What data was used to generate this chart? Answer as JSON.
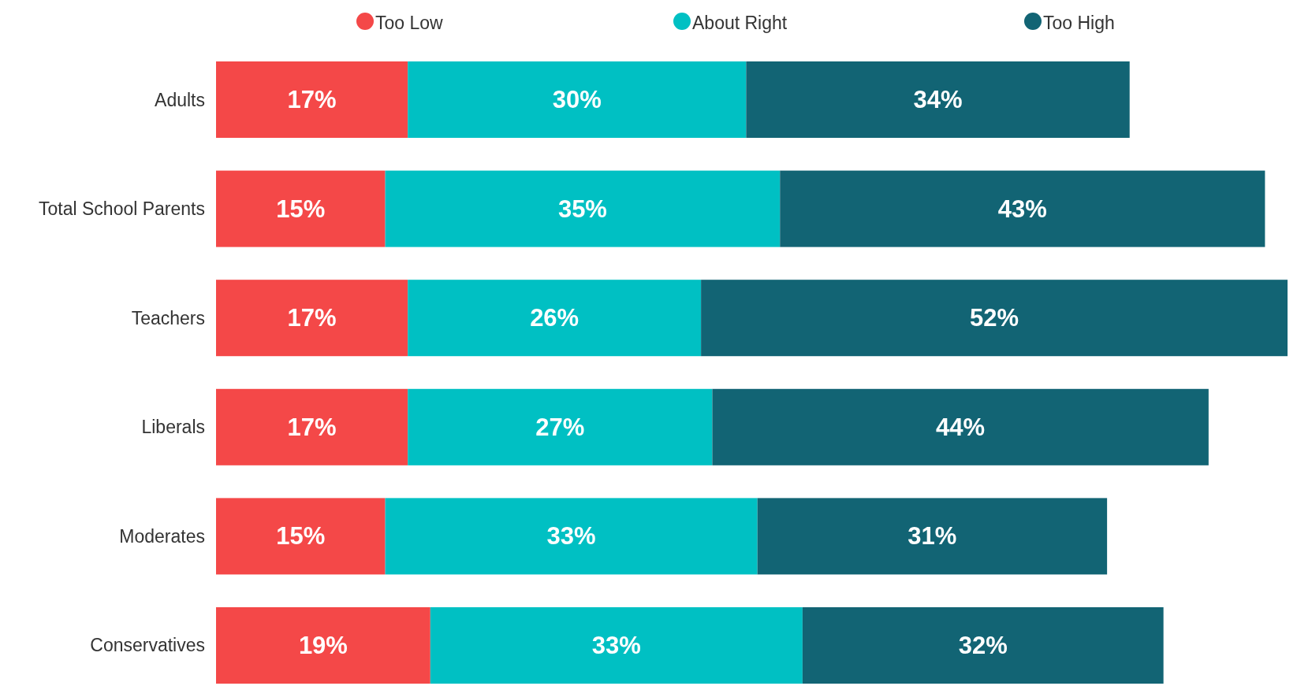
{
  "chart_data": {
    "type": "bar",
    "orientation": "horizontal",
    "stacked": true,
    "legend": "top",
    "categories": [
      "Adults",
      "Total School Parents",
      "Teachers",
      "Liberals",
      "Moderates",
      "Conservatives"
    ],
    "series": [
      {
        "name": "Too Low",
        "color": "#f44848",
        "values": [
          17,
          15,
          17,
          17,
          15,
          19
        ],
        "value_labels": [
          "17%",
          "15%",
          "17%",
          "17%",
          "15%",
          "19%"
        ]
      },
      {
        "name": "About Right",
        "color": "#00c0c3",
        "values": [
          30,
          35,
          26,
          27,
          33,
          33
        ],
        "value_labels": [
          "30%",
          "35%",
          "26%",
          "27%",
          "33%",
          "33%"
        ]
      },
      {
        "name": "Too High",
        "color": "#126474",
        "values": [
          34,
          43,
          52,
          44,
          31,
          32
        ],
        "value_labels": [
          "34%",
          "43%",
          "52%",
          "44%",
          "31%",
          "32%"
        ]
      }
    ]
  }
}
